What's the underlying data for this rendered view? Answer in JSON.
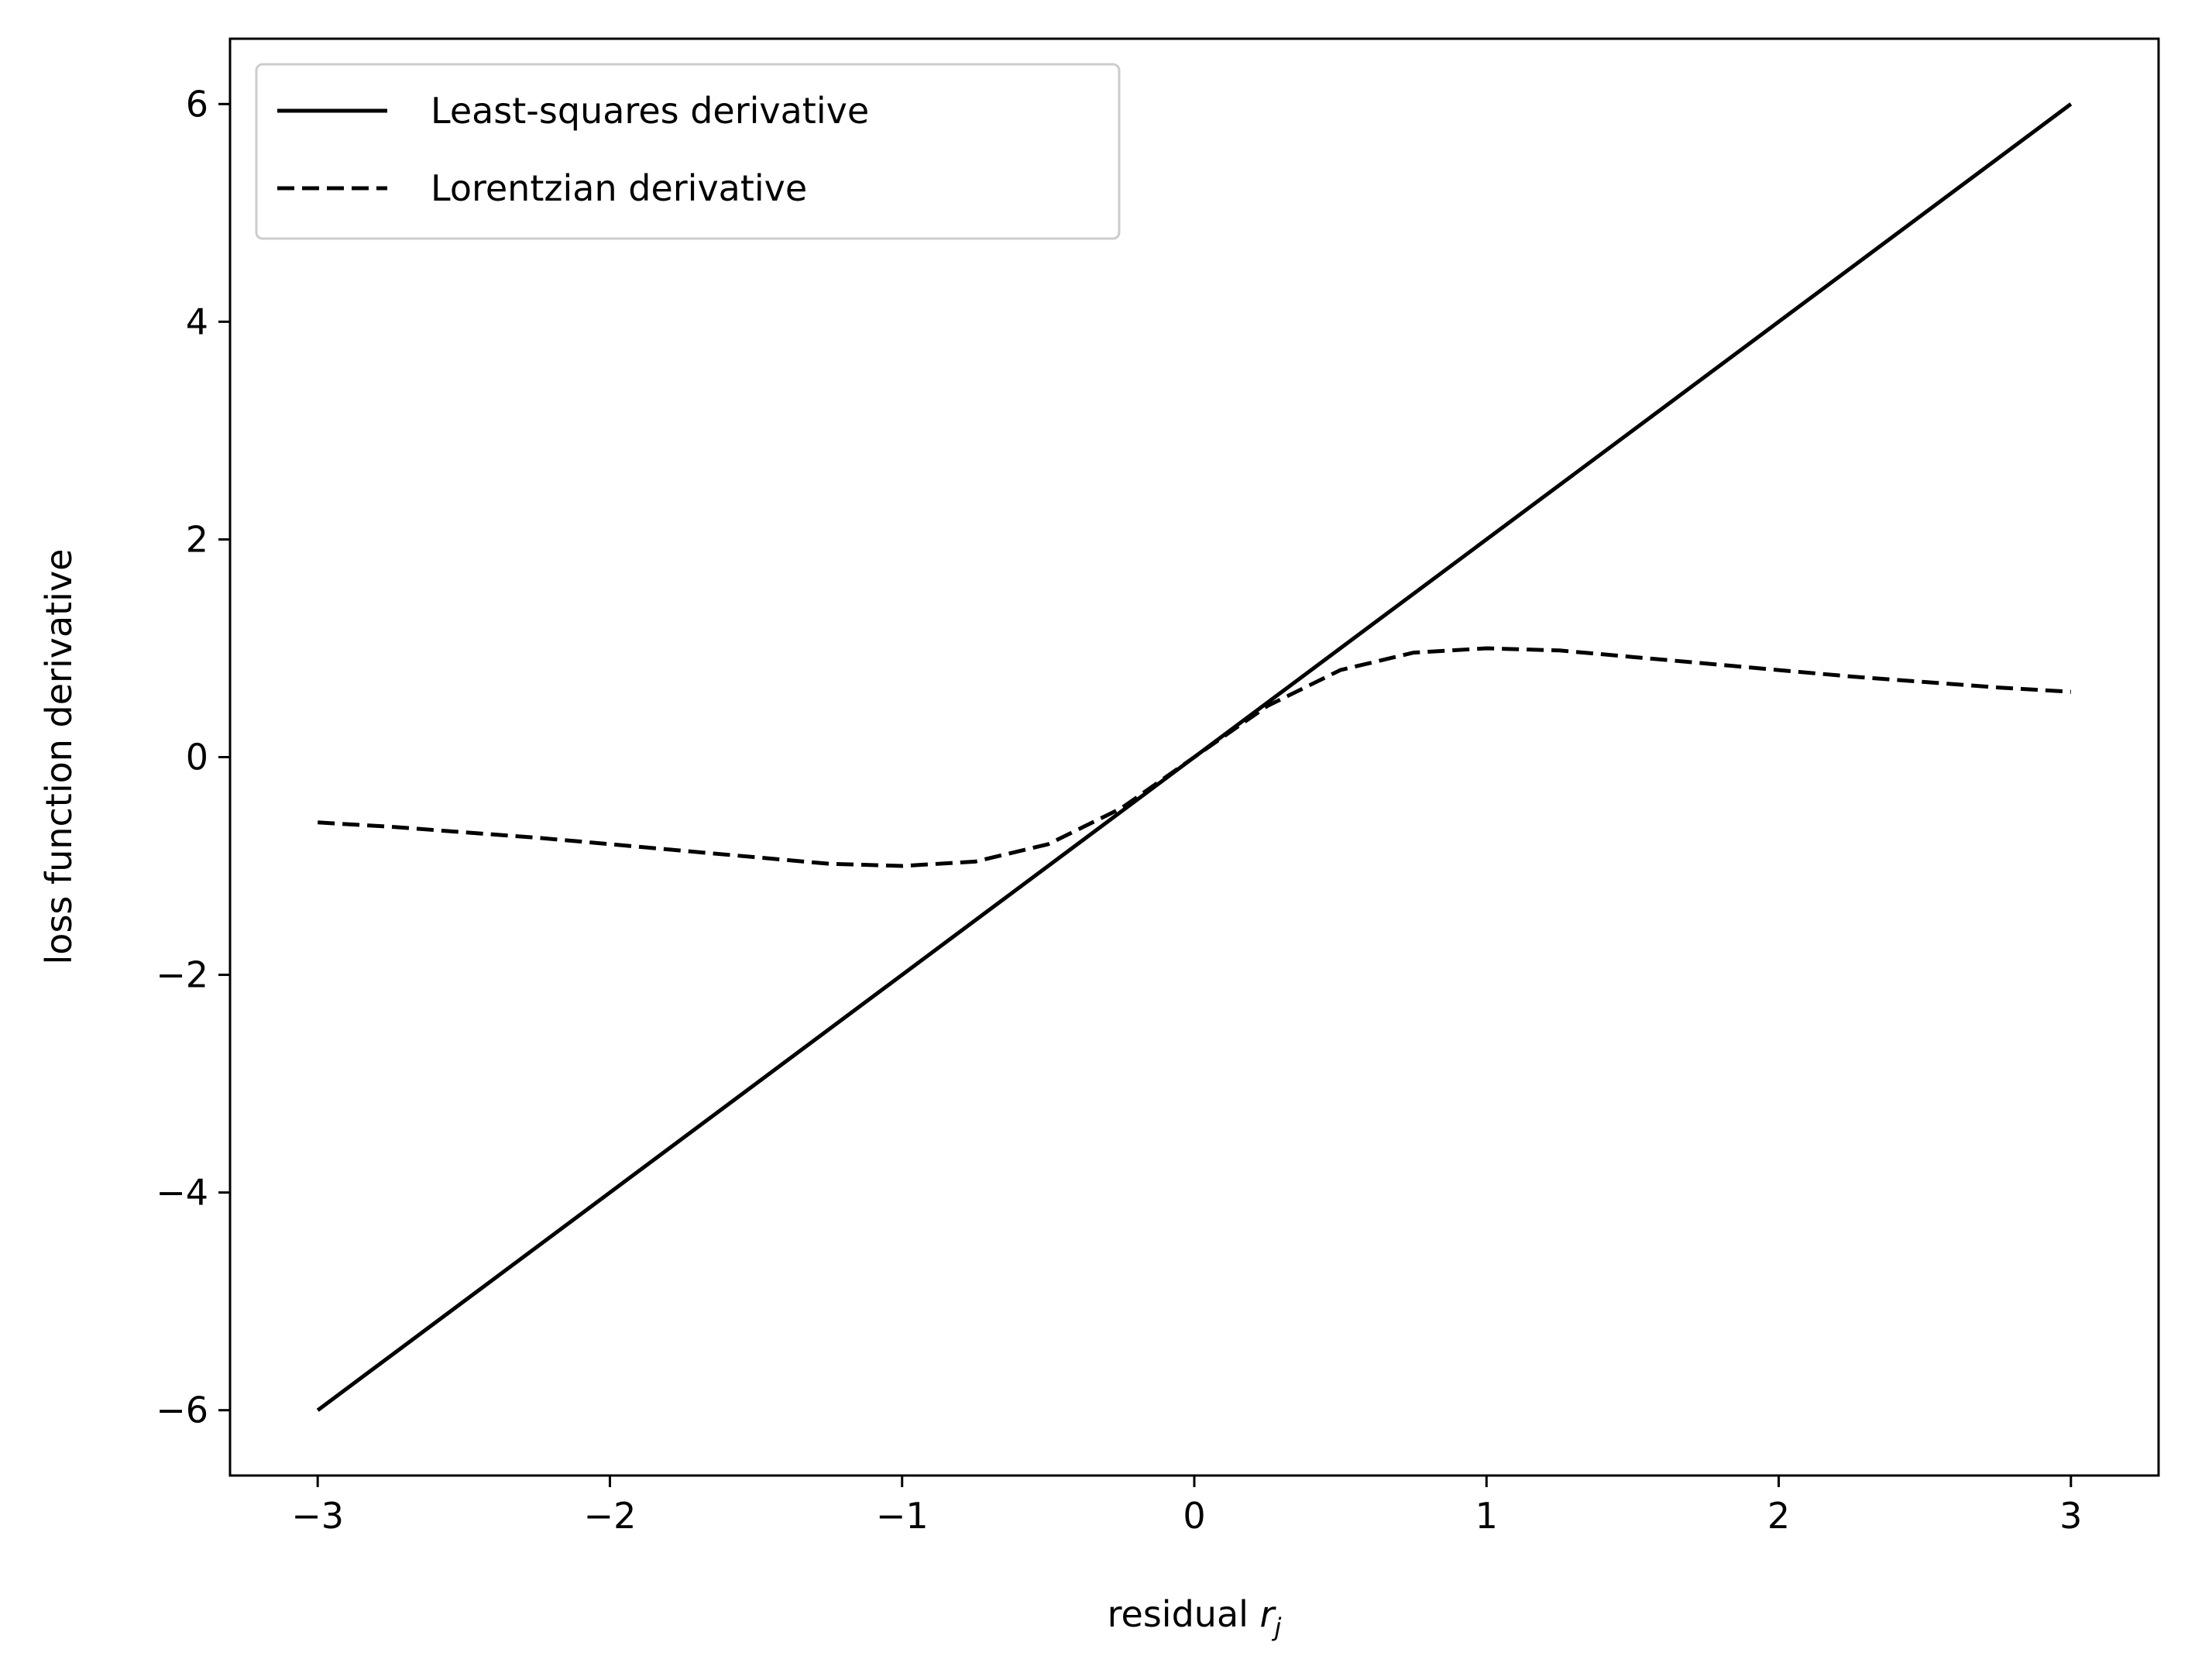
{
  "chart_data": {
    "type": "line",
    "xlabel": "residual",
    "xlabel_sub": "r",
    "xlabel_subscript": "j",
    "ylabel": "loss function derivative",
    "xlim": [
      -3.3,
      3.3
    ],
    "ylim": [
      -6.6,
      6.6
    ],
    "xticks": [
      -3,
      -2,
      -1,
      0,
      1,
      2,
      3
    ],
    "xtick_labels": [
      "−3",
      "−2",
      "−1",
      "0",
      "1",
      "2",
      "3"
    ],
    "yticks": [
      -6,
      -4,
      -2,
      0,
      2,
      4,
      6
    ],
    "ytick_labels": [
      "−6",
      "−4",
      "−2",
      "0",
      "2",
      "4",
      "6"
    ],
    "grid": false,
    "legend_position": "upper-left",
    "series": [
      {
        "name": "Least-squares derivative",
        "style": "solid",
        "color": "#000000",
        "x": [
          -3,
          -2,
          -1,
          0,
          1,
          2,
          3
        ],
        "y": [
          -6,
          -4,
          -2,
          0,
          2,
          4,
          6
        ]
      },
      {
        "name": "Lorentzian derivative",
        "style": "dashed",
        "color": "#000000",
        "x": [
          -3,
          -2.75,
          -2.5,
          -2.25,
          -2,
          -1.75,
          -1.5,
          -1.25,
          -1,
          -0.75,
          -0.5,
          -0.25,
          0,
          0.25,
          0.5,
          0.75,
          1,
          1.25,
          1.5,
          1.75,
          2,
          2.25,
          2.5,
          2.75,
          3
        ],
        "y": [
          -0.6,
          -0.64,
          -0.69,
          -0.74,
          -0.8,
          -0.86,
          -0.92,
          -0.98,
          -1.0,
          -0.96,
          -0.8,
          -0.47,
          0,
          0.47,
          0.8,
          0.96,
          1.0,
          0.98,
          0.92,
          0.86,
          0.8,
          0.74,
          0.69,
          0.64,
          0.6
        ]
      }
    ]
  }
}
